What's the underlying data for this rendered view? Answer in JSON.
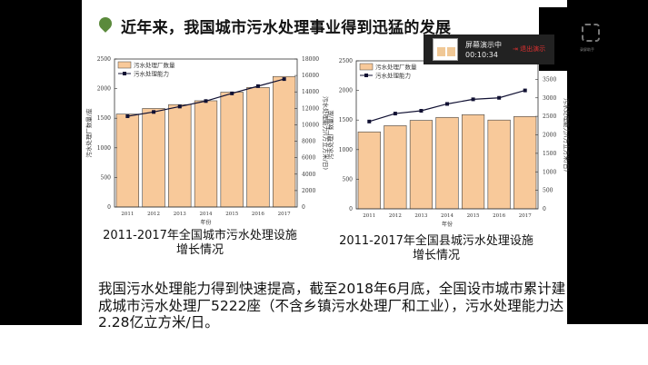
{
  "slide": {
    "title": "近年来，我国城市污水处理事业得到迅猛的发展",
    "accent": "#5b8a3c",
    "paragraph": [
      "我国污水处理能力得到快速提高，截至2018年6月底，全国设市城市累计建",
      "成城市污水处理厂5222座（不含乡镇污水处理厂和工业），污水处理能力达",
      "2.28亿立方米/日。"
    ],
    "caption1": [
      "2011-2017年全国城市污水处理设施",
      "增长情况"
    ],
    "caption2": [
      "2011-2017年全国县城污水处理设施",
      "增长情况"
    ]
  },
  "chart_data": [
    {
      "type": "bar+line",
      "categories": [
        "2011",
        "2012",
        "2013",
        "2014",
        "2015",
        "2016",
        "2017"
      ],
      "xlabel": "年份",
      "ylabel": "污水处理厂数量/座",
      "y2label": "污水处理能力/(万立方米/日)",
      "ylim": [
        0,
        2500
      ],
      "yticks": [
        0,
        500,
        1000,
        1500,
        2000,
        2500
      ],
      "y2lim": [
        0,
        18000
      ],
      "y2ticks": [
        0,
        2000,
        4000,
        6000,
        8000,
        10000,
        12000,
        14000,
        16000,
        18000
      ],
      "legend_position": "top-left",
      "series": [
        {
          "name": "污水处理厂数量",
          "type": "bar",
          "axis": "left",
          "color": "#f8c99a",
          "values": [
            1570,
            1665,
            1730,
            1795,
            1940,
            2020,
            2205
          ]
        },
        {
          "name": "污水处理能力",
          "type": "line",
          "axis": "right",
          "color": "#111133",
          "values": [
            11040,
            11560,
            12220,
            12890,
            13820,
            14700,
            15560
          ]
        }
      ]
    },
    {
      "type": "bar+line",
      "categories": [
        "2011",
        "2012",
        "2013",
        "2014",
        "2015",
        "2016",
        "2017"
      ],
      "xlabel": "年份",
      "ylabel": "污水处理厂数量/座",
      "y2label": "污水处理能力/(万立方米/日)",
      "ylim": [
        0,
        2500
      ],
      "yticks": [
        0,
        500,
        1000,
        1500,
        2000,
        2500
      ],
      "y2lim": [
        0,
        4000
      ],
      "y2ticks": [
        0,
        500,
        1000,
        1500,
        2000,
        2500,
        3000,
        3500
      ],
      "legend_position": "top-left",
      "series": [
        {
          "name": "污水处理厂数量",
          "type": "bar",
          "axis": "left",
          "color": "#f8c99a",
          "values": [
            1300,
            1405,
            1495,
            1545,
            1590,
            1500,
            1560
          ]
        },
        {
          "name": "污水处理能力",
          "type": "line",
          "axis": "right",
          "color": "#111133",
          "values": [
            2360,
            2575,
            2650,
            2835,
            2960,
            3000,
            3200
          ]
        }
      ]
    }
  ],
  "overlay": {
    "status": "屏幕演示中",
    "timer": "00:10:34",
    "exit_label": "退出演示",
    "recorder_label": "录屏助手"
  }
}
